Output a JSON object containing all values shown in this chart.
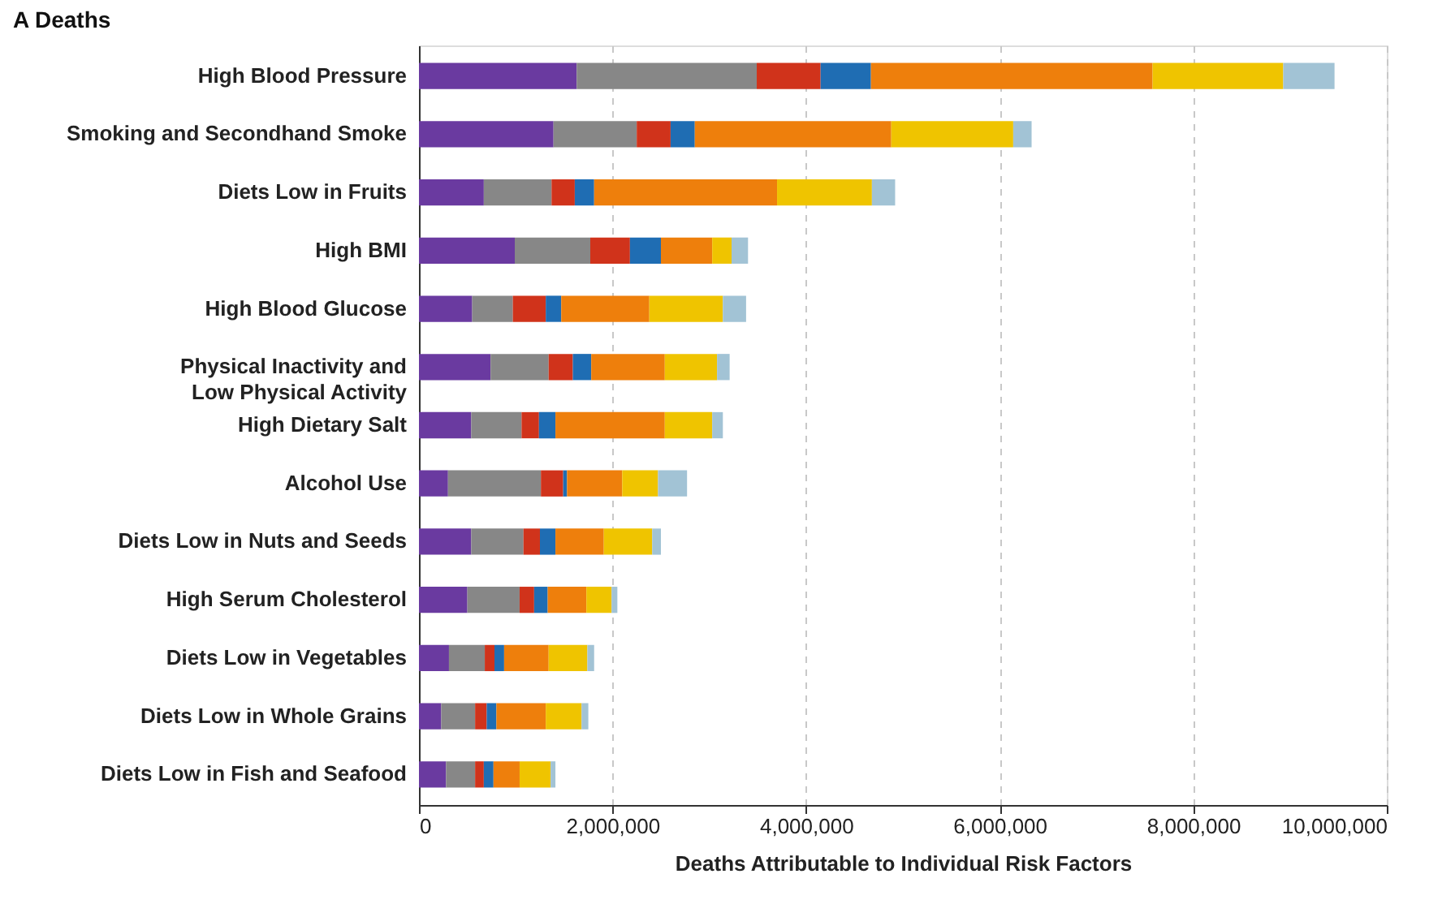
{
  "chart_data": {
    "type": "bar",
    "orientation": "horizontal",
    "stacked": true,
    "title": "A  Deaths",
    "xlabel": "Deaths Attributable to Individual Risk Factors",
    "categories": [
      "High Blood Pressure",
      "Smoking and Secondhand Smoke",
      "Diets Low in Fruits",
      "High BMI",
      "High Blood Glucose",
      "Physical Inactivity and Low Physical Activity",
      "High Dietary Salt",
      "Alcohol Use",
      "Diets Low in Nuts and Seeds",
      "High Serum Cholesterol",
      "Diets Low in Vegetables",
      "Diets Low in Whole Grains",
      "Diets Low in Fish and Seafood"
    ],
    "series": [
      {
        "color": "#6a3aa0",
        "values": [
          1630000,
          1390000,
          670000,
          990000,
          550000,
          740000,
          540000,
          300000,
          540000,
          500000,
          310000,
          230000,
          280000
        ]
      },
      {
        "color": "#878787",
        "values": [
          1860000,
          860000,
          700000,
          780000,
          420000,
          600000,
          520000,
          960000,
          540000,
          540000,
          370000,
          350000,
          300000
        ]
      },
      {
        "color": "#d0331b",
        "values": [
          660000,
          350000,
          240000,
          410000,
          340000,
          250000,
          180000,
          230000,
          170000,
          150000,
          100000,
          120000,
          90000
        ]
      },
      {
        "color": "#1f6db3",
        "values": [
          520000,
          250000,
          200000,
          320000,
          160000,
          190000,
          170000,
          40000,
          160000,
          140000,
          100000,
          100000,
          100000
        ]
      },
      {
        "color": "#ee7f0c",
        "values": [
          2910000,
          2030000,
          1890000,
          530000,
          910000,
          760000,
          1130000,
          570000,
          500000,
          400000,
          460000,
          510000,
          270000
        ]
      },
      {
        "color": "#efc400",
        "values": [
          1350000,
          1260000,
          980000,
          200000,
          760000,
          540000,
          490000,
          370000,
          500000,
          260000,
          400000,
          370000,
          320000
        ]
      },
      {
        "color": "#a2c3d5",
        "values": [
          530000,
          190000,
          240000,
          170000,
          240000,
          130000,
          110000,
          300000,
          90000,
          60000,
          70000,
          70000,
          50000
        ]
      }
    ],
    "xlim": [
      0,
      10000000
    ],
    "xticks": [
      0,
      {
        "value": 2000000,
        "label": "2,000,000"
      },
      {
        "value": 4000000,
        "label": "4,000,000"
      },
      {
        "value": 6000000,
        "label": "6,000,000"
      },
      {
        "value": 8000000,
        "label": "8,000,000"
      },
      {
        "value": 10000000,
        "label": "10,000,000"
      }
    ],
    "grid": "x",
    "legend": false
  }
}
